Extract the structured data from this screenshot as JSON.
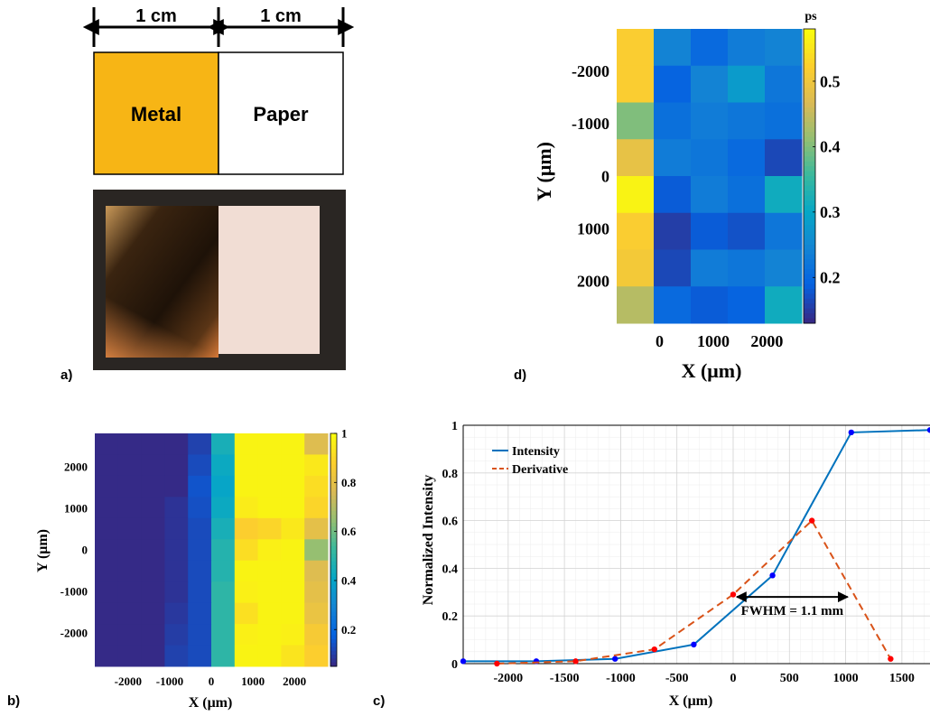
{
  "panel_letters": {
    "a": "a)",
    "b": "b)",
    "c": "c)",
    "d": "d)"
  },
  "panel_a": {
    "dim_left": "1 cm",
    "dim_right": "1 cm",
    "metal_label": "Metal",
    "paper_label": "Paper",
    "colors": {
      "metal": "#f7b515",
      "paper": "#ffffff",
      "photo_bg": "#2a2623",
      "photo_metal": "#3a2410",
      "photo_paper": "#f1ddd4"
    }
  },
  "chart_data": [
    {
      "id": "panel-b",
      "type": "heatmap",
      "title": "",
      "xlabel": "X (μm)",
      "ylabel": "Y (μm)",
      "x_ticks": [
        "-2000",
        "-1000",
        "0",
        "1000",
        "2000"
      ],
      "y_ticks": [
        "2000",
        "1000",
        "0",
        "-1000",
        "-2000"
      ],
      "colorbar_ticks": [
        "1",
        "0.8",
        "0.6",
        "0.4",
        "0.2"
      ],
      "colorbar_range": [
        0.05,
        1
      ],
      "colormap": "parula",
      "values": [
        [
          0.05,
          0.05,
          0.05,
          0.05,
          0.1,
          0.45,
          0.98,
          0.98,
          0.98,
          0.78
        ],
        [
          0.05,
          0.05,
          0.05,
          0.05,
          0.12,
          0.42,
          0.98,
          0.98,
          0.98,
          0.95
        ],
        [
          0.05,
          0.05,
          0.05,
          0.05,
          0.14,
          0.4,
          0.98,
          0.98,
          0.98,
          0.92
        ],
        [
          0.05,
          0.05,
          0.05,
          0.07,
          0.13,
          0.42,
          0.96,
          0.98,
          0.98,
          0.9
        ],
        [
          0.05,
          0.05,
          0.05,
          0.07,
          0.12,
          0.45,
          0.88,
          0.9,
          0.95,
          0.8
        ],
        [
          0.05,
          0.05,
          0.05,
          0.07,
          0.12,
          0.48,
          0.92,
          0.97,
          0.98,
          0.65
        ],
        [
          0.05,
          0.05,
          0.05,
          0.07,
          0.12,
          0.48,
          0.98,
          0.98,
          0.98,
          0.78
        ],
        [
          0.05,
          0.05,
          0.05,
          0.07,
          0.12,
          0.5,
          0.97,
          0.98,
          0.98,
          0.8
        ],
        [
          0.05,
          0.05,
          0.05,
          0.08,
          0.12,
          0.5,
          0.93,
          0.98,
          0.98,
          0.82
        ],
        [
          0.05,
          0.05,
          0.05,
          0.09,
          0.12,
          0.5,
          0.97,
          0.98,
          0.97,
          0.86
        ],
        [
          0.05,
          0.05,
          0.05,
          0.1,
          0.12,
          0.5,
          0.98,
          0.98,
          0.94,
          0.88
        ]
      ]
    },
    {
      "id": "panel-c",
      "type": "line",
      "title": "",
      "xlabel": "X (μm)",
      "ylabel": "Normalized Intensity",
      "xlim": [
        -2400,
        1750
      ],
      "ylim": [
        0,
        1
      ],
      "x_ticks": [
        -2000,
        -1500,
        -1000,
        -500,
        0,
        500,
        1000,
        1500
      ],
      "y_ticks": [
        0,
        0.2,
        0.4,
        0.6,
        0.8,
        1
      ],
      "grid": true,
      "legend_position": "top-left",
      "series": [
        {
          "name": "Intensity",
          "color": "#0072bd",
          "dash": "solid",
          "marker_color": "#0000ff",
          "x": [
            -2400,
            -1750,
            -1050,
            -350,
            350,
            1050,
            1750
          ],
          "y": [
            0.01,
            0.01,
            0.02,
            0.08,
            0.37,
            0.97,
            0.98
          ]
        },
        {
          "name": "Derivative",
          "color": "#d95319",
          "dash": "dashed",
          "marker_color": "#ff0000",
          "x": [
            -2100,
            -1400,
            -700,
            0,
            700,
            1400
          ],
          "y": [
            0.0,
            0.01,
            0.06,
            0.29,
            0.6,
            0.02
          ]
        }
      ],
      "annotation": {
        "text": "FWHM = 1.1 mm",
        "x_from": 0,
        "x_to": 1050,
        "y": 0.28
      }
    },
    {
      "id": "panel-d",
      "type": "heatmap",
      "title": "",
      "xlabel": "X (μm)",
      "ylabel": "Y (μm)",
      "colorbar_title": "ps",
      "x_ticks": [
        "0",
        "1000",
        "2000"
      ],
      "y_ticks": [
        "-2000",
        "-1000",
        "0",
        "1000",
        "2000"
      ],
      "colorbar_ticks": [
        "0.5",
        "0.4",
        "0.3",
        "0.2"
      ],
      "colorbar_range": [
        0.13,
        0.58
      ],
      "colormap": "parula",
      "values": [
        [
          0.52,
          0.24,
          0.2,
          0.23,
          0.24
        ],
        [
          0.52,
          0.19,
          0.24,
          0.28,
          0.22
        ],
        [
          0.4,
          0.21,
          0.23,
          0.22,
          0.21
        ],
        [
          0.49,
          0.23,
          0.22,
          0.2,
          0.16
        ],
        [
          0.57,
          0.18,
          0.23,
          0.21,
          0.31
        ],
        [
          0.52,
          0.15,
          0.18,
          0.17,
          0.22
        ],
        [
          0.51,
          0.16,
          0.23,
          0.22,
          0.24
        ],
        [
          0.44,
          0.2,
          0.18,
          0.19,
          0.31
        ]
      ]
    }
  ]
}
